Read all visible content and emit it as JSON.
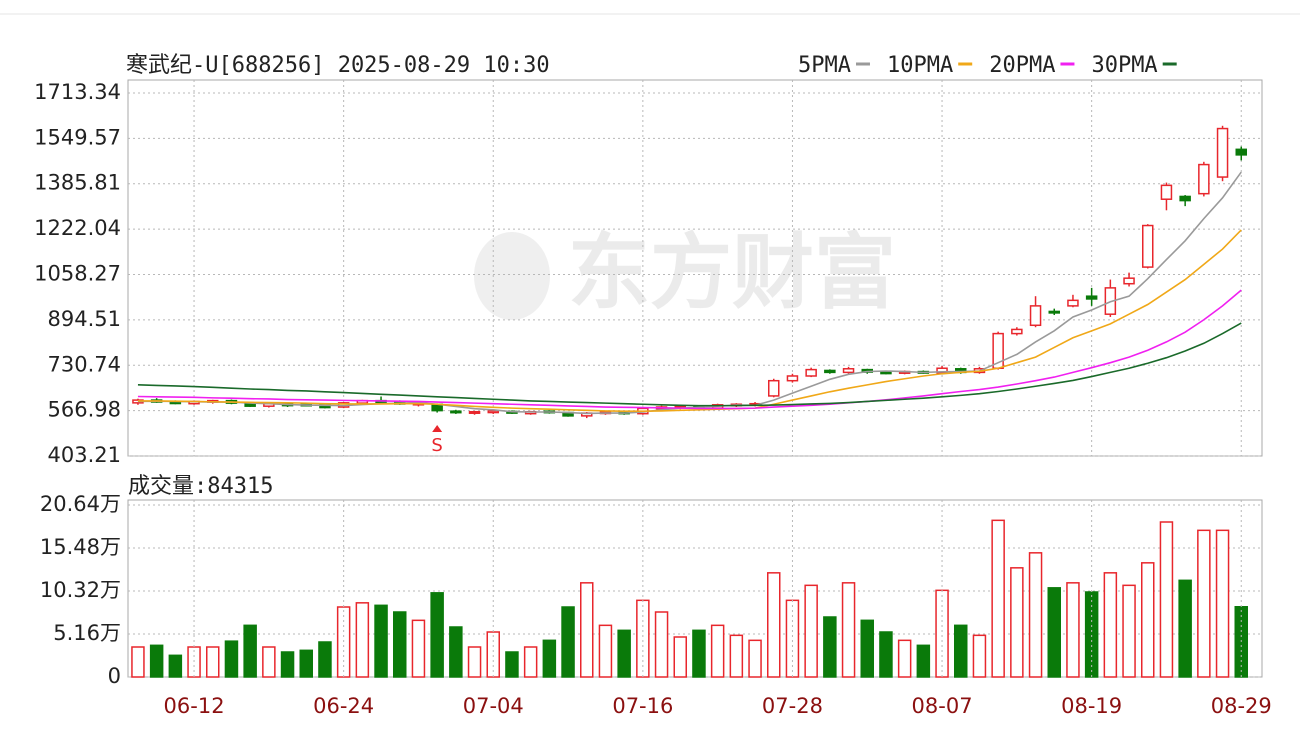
{
  "chart_data": [
    {
      "type": "candlestick",
      "title": "寒武纪-U[688256] 2025-08-29 10:30",
      "watermark": "东方财富",
      "annotation": "S",
      "open": [
        595,
        605,
        598,
        592,
        598,
        603,
        594,
        583,
        592,
        590,
        588,
        580,
        594,
        603,
        600,
        588,
        590,
        565,
        558,
        560,
        564,
        556,
        565,
        560,
        548,
        557,
        562,
        556,
        574,
        578,
        583,
        576,
        586,
        588,
        620,
        675,
        692,
        712,
        705,
        715,
        706,
        702,
        708,
        703,
        718,
        705,
        720,
        845,
        875,
        925,
        945,
        980,
        915,
        1025,
        1085,
        1330,
        1340,
        1350,
        1410,
        1510
      ],
      "high": [
        610,
        612,
        604,
        603,
        606,
        607,
        598,
        596,
        595,
        594,
        592,
        598,
        606,
        618,
        604,
        598,
        593,
        570,
        566,
        570,
        568,
        566,
        568,
        562,
        562,
        565,
        566,
        580,
        585,
        586,
        586,
        592,
        594,
        598,
        682,
        700,
        722,
        716,
        725,
        718,
        710,
        712,
        712,
        728,
        722,
        725,
        852,
        868,
        980,
        935,
        985,
        1010,
        1040,
        1065,
        1240,
        1390,
        1345,
        1465,
        1595,
        1520
      ],
      "low": [
        588,
        595,
        590,
        588,
        592,
        590,
        580,
        578,
        580,
        582,
        575,
        576,
        590,
        592,
        588,
        582,
        560,
        555,
        552,
        555,
        555,
        552,
        556,
        545,
        540,
        552,
        552,
        552,
        568,
        572,
        572,
        572,
        580,
        582,
        615,
        668,
        688,
        700,
        700,
        700,
        698,
        698,
        700,
        700,
        700,
        700,
        715,
        838,
        868,
        912,
        940,
        945,
        905,
        1015,
        1080,
        1290,
        1305,
        1340,
        1395,
        1470
      ],
      "close": [
        605,
        598,
        593,
        600,
        603,
        594,
        583,
        592,
        585,
        586,
        578,
        595,
        603,
        597,
        591,
        594,
        567,
        560,
        563,
        566,
        558,
        563,
        560,
        548,
        558,
        562,
        556,
        575,
        580,
        583,
        576,
        588,
        590,
        592,
        675,
        692,
        715,
        705,
        718,
        706,
        702,
        708,
        704,
        720,
        705,
        718,
        845,
        860,
        945,
        920,
        965,
        970,
        1010,
        1045,
        1235,
        1380,
        1325,
        1455,
        1585,
        1490
      ],
      "up_color": "#e8262c",
      "down_color": "#0a7a0a",
      "series": [
        {
          "name": "5PMA",
          "color": "#9a9a9a",
          "values": [
            600,
            601,
            600,
            599,
            598,
            598,
            594,
            592,
            589,
            587,
            586,
            585,
            589,
            592,
            594,
            596,
            590,
            582,
            574,
            570,
            563,
            562,
            562,
            560,
            557,
            558,
            558,
            562,
            570,
            576,
            579,
            583,
            587,
            586,
            605,
            630,
            655,
            680,
            698,
            708,
            710,
            708,
            705,
            707,
            708,
            710,
            740,
            770,
            815,
            855,
            905,
            930,
            960,
            980,
            1043,
            1112,
            1180,
            1260,
            1335,
            1428
          ]
        },
        {
          "name": "10PMA",
          "color": "#f0a818",
          "values": [
            602,
            602,
            601,
            600,
            599,
            598,
            597,
            596,
            595,
            594,
            592,
            591,
            591,
            591,
            592,
            592,
            590,
            586,
            582,
            579,
            576,
            574,
            572,
            570,
            568,
            566,
            565,
            565,
            566,
            568,
            570,
            572,
            574,
            576,
            590,
            605,
            620,
            635,
            648,
            660,
            672,
            682,
            692,
            700,
            705,
            709,
            720,
            740,
            760,
            795,
            830,
            855,
            880,
            915,
            950,
            995,
            1040,
            1095,
            1150,
            1219
          ]
        },
        {
          "name": "20PMA",
          "color": "#f020f0",
          "values": [
            618,
            617,
            616,
            615,
            613,
            612,
            610,
            609,
            607,
            606,
            605,
            604,
            603,
            602,
            601,
            600,
            598,
            596,
            594,
            592,
            590,
            588,
            586,
            584,
            582,
            580,
            579,
            578,
            577,
            576,
            575,
            575,
            575,
            576,
            580,
            583,
            586,
            590,
            595,
            600,
            606,
            613,
            620,
            628,
            636,
            643,
            652,
            663,
            675,
            688,
            705,
            722,
            740,
            760,
            785,
            815,
            850,
            895,
            945,
            1002
          ]
        },
        {
          "name": "30PMA",
          "color": "#1a6a2a",
          "values": [
            660,
            658,
            656,
            654,
            651,
            648,
            645,
            643,
            640,
            638,
            635,
            632,
            629,
            626,
            623,
            620,
            617,
            614,
            611,
            608,
            605,
            602,
            600,
            598,
            596,
            594,
            592,
            590,
            588,
            586,
            585,
            585,
            585,
            586,
            587,
            589,
            591,
            593,
            596,
            600,
            604,
            608,
            612,
            617,
            622,
            628,
            636,
            645,
            655,
            665,
            676,
            690,
            705,
            720,
            738,
            758,
            782,
            810,
            845,
            883
          ]
        }
      ],
      "ylim": [
        403.21,
        1713.34
      ],
      "yticks": [
        403.21,
        566.98,
        730.74,
        894.51,
        1058.27,
        1222.04,
        1385.81,
        1549.57,
        1713.34
      ],
      "grid": true
    },
    {
      "type": "bar",
      "title": "成交量:84315",
      "categories": [
        null,
        null,
        null,
        "06-12",
        null,
        null,
        null,
        null,
        null,
        null,
        null,
        "06-24",
        null,
        null,
        null,
        null,
        null,
        null,
        null,
        "07-04",
        null,
        null,
        null,
        null,
        null,
        null,
        null,
        "07-16",
        null,
        null,
        null,
        null,
        null,
        null,
        null,
        "07-28",
        null,
        null,
        null,
        null,
        null,
        null,
        null,
        "08-07",
        null,
        null,
        null,
        null,
        null,
        null,
        null,
        "08-19",
        null,
        null,
        null,
        null,
        null,
        null,
        null,
        "08-29"
      ],
      "values": [
        3.6,
        3.8,
        2.6,
        3.6,
        3.6,
        4.3,
        6.2,
        3.6,
        3.0,
        3.2,
        4.2,
        8.4,
        8.9,
        8.6,
        7.8,
        6.8,
        10.1,
        6.0,
        3.6,
        5.4,
        3.0,
        3.6,
        4.4,
        8.4,
        11.3,
        6.2,
        5.6,
        9.2,
        7.8,
        4.8,
        5.6,
        6.2,
        5.0,
        4.4,
        12.5,
        9.2,
        11.0,
        7.2,
        11.3,
        6.8,
        5.4,
        4.4,
        3.8,
        10.4,
        6.2,
        5.0,
        18.8,
        13.1,
        14.9,
        10.7,
        11.3,
        10.2,
        12.5,
        11.0,
        13.7,
        18.6,
        11.6,
        17.6,
        17.6,
        8.43
      ],
      "ylim": [
        0,
        20.64
      ],
      "yticks": [
        0,
        {
          "value": 5.16,
          "label": "5.16万"
        },
        {
          "value": 10.32,
          "label": "10.32万"
        },
        {
          "value": 15.48,
          "label": "15.48万"
        },
        {
          "value": 20.64,
          "label": "20.64万"
        }
      ],
      "grid": true
    }
  ]
}
